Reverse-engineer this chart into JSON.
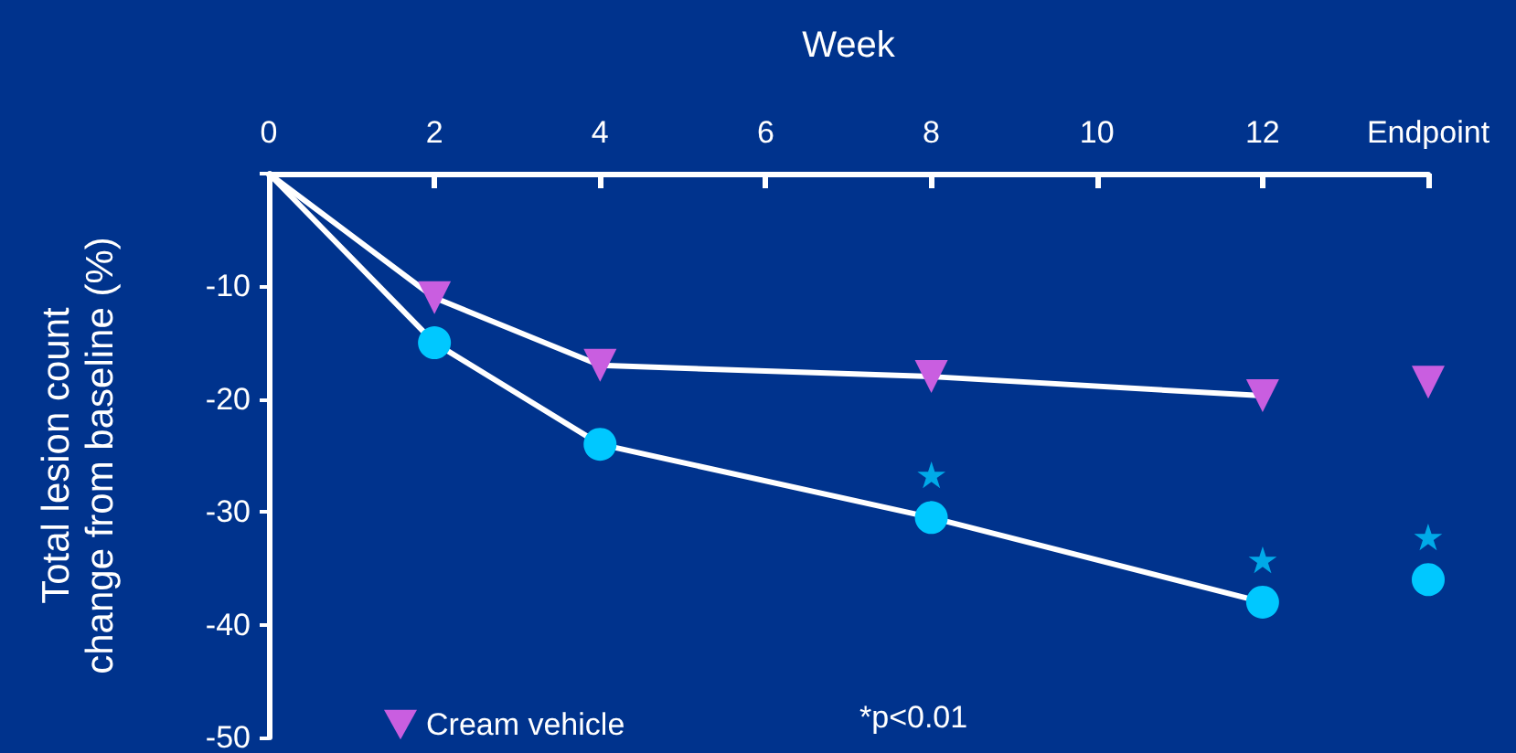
{
  "chart_data": {
    "type": "line",
    "xlabel": "Week",
    "ylabel": "Total lesion count\nchange from baseline (%)",
    "xlim": [
      0,
      14
    ],
    "xticks": [
      0,
      2,
      4,
      6,
      8,
      10,
      12,
      {
        "value": 14,
        "label": "Endpoint"
      }
    ],
    "ylim": [
      -50,
      0
    ],
    "yticks": [
      -50,
      -40,
      -30,
      -20,
      -10,
      {
        "value": 0,
        "label": null
      }
    ],
    "series": [
      {
        "color": "#00c8ff",
        "marker": "circle",
        "x": [
          0,
          2,
          4,
          8,
          12,
          13,
          14
        ],
        "values": [
          0,
          -15,
          -24,
          -30.5,
          -38,
          null,
          -36
        ]
      },
      {
        "name": "Cream vehicle",
        "color": "#c95ee0",
        "marker": "triangle",
        "x": [
          0,
          2,
          4,
          8,
          12,
          13,
          14
        ],
        "values": [
          0,
          -11,
          -17,
          -18,
          -19.7,
          null,
          -18.5
        ]
      }
    ],
    "annotations": [
      {
        "text": "★",
        "x": 8,
        "y": -30.5
      },
      {
        "text": "★",
        "x": 12,
        "y": -38
      },
      {
        "text": "★",
        "x": 14,
        "y": -36
      },
      "*p<0.01"
    ],
    "legend": "bottom left",
    "grid": false
  }
}
